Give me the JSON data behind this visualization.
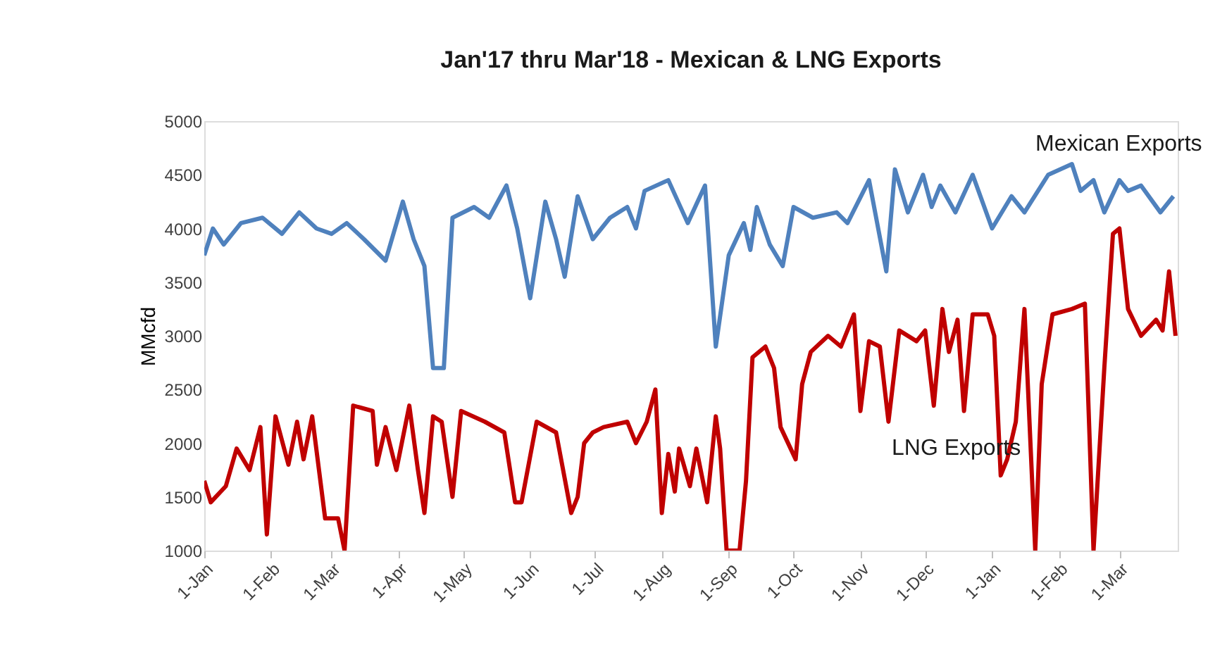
{
  "chart_data": {
    "type": "line",
    "title": "Jan'17 thru Mar'18 - Mexican & LNG Exports",
    "ylabel": "MMcfd",
    "ylim": [
      1000,
      5000
    ],
    "yticks": [
      1000,
      1500,
      2000,
      2500,
      3000,
      3500,
      4000,
      4500,
      5000
    ],
    "xlim": [
      "2017-01-01",
      "2018-03-28"
    ],
    "xticks": [
      {
        "value": "2017-01-01",
        "label": "1-Jan"
      },
      {
        "value": "2017-02-01",
        "label": "1-Feb"
      },
      {
        "value": "2017-03-01",
        "label": "1-Mar"
      },
      {
        "value": "2017-04-01",
        "label": "1-Apr"
      },
      {
        "value": "2017-05-01",
        "label": "1-May"
      },
      {
        "value": "2017-06-01",
        "label": "1-Jun"
      },
      {
        "value": "2017-07-01",
        "label": "1-Jul"
      },
      {
        "value": "2017-08-01",
        "label": "1-Aug"
      },
      {
        "value": "2017-09-01",
        "label": "1-Sep"
      },
      {
        "value": "2017-10-01",
        "label": "1-Oct"
      },
      {
        "value": "2017-11-01",
        "label": "1-Nov"
      },
      {
        "value": "2017-12-01",
        "label": "1-Dec"
      },
      {
        "value": "2018-01-01",
        "label": "1-Jan"
      },
      {
        "value": "2018-02-01",
        "label": "1-Feb"
      },
      {
        "value": "2018-03-01",
        "label": "1-Mar"
      }
    ],
    "grid": false,
    "legend": false,
    "marker": "none",
    "line_style": "solid",
    "series": [
      {
        "name": "Mexican Exports",
        "color": "#4f81bd",
        "x": [
          "2017-01-01",
          "2017-01-05",
          "2017-01-10",
          "2017-01-18",
          "2017-01-28",
          "2017-02-06",
          "2017-02-14",
          "2017-02-22",
          "2017-03-01",
          "2017-03-08",
          "2017-03-16",
          "2017-03-26",
          "2017-04-03",
          "2017-04-08",
          "2017-04-13",
          "2017-04-17",
          "2017-04-22",
          "2017-04-26",
          "2017-05-06",
          "2017-05-13",
          "2017-05-21",
          "2017-05-26",
          "2017-06-01",
          "2017-06-08",
          "2017-06-13",
          "2017-06-17",
          "2017-06-23",
          "2017-06-30",
          "2017-07-08",
          "2017-07-16",
          "2017-07-20",
          "2017-07-24",
          "2017-08-04",
          "2017-08-13",
          "2017-08-21",
          "2017-08-26",
          "2017-09-01",
          "2017-09-08",
          "2017-09-11",
          "2017-09-14",
          "2017-09-20",
          "2017-09-26",
          "2017-10-01",
          "2017-10-10",
          "2017-10-21",
          "2017-10-26",
          "2017-11-05",
          "2017-11-13",
          "2017-11-17",
          "2017-11-23",
          "2017-11-30",
          "2017-12-04",
          "2017-12-08",
          "2017-12-15",
          "2017-12-23",
          "2018-01-01",
          "2018-01-10",
          "2018-01-16",
          "2018-01-27",
          "2018-02-07",
          "2018-02-11",
          "2018-02-17",
          "2018-02-22",
          "2018-03-01",
          "2018-03-05",
          "2018-03-11",
          "2018-03-20",
          "2018-03-26"
        ],
        "values": [
          3750,
          4000,
          3850,
          4050,
          4100,
          3950,
          4150,
          4000,
          3950,
          4050,
          3900,
          3700,
          4250,
          3900,
          3650,
          2700,
          2700,
          4100,
          4200,
          4100,
          4400,
          4000,
          3350,
          4250,
          3900,
          3550,
          4300,
          3900,
          4100,
          4200,
          4000,
          4350,
          4450,
          4050,
          4400,
          2900,
          3750,
          4050,
          3800,
          4200,
          3850,
          3650,
          4200,
          4100,
          4150,
          4050,
          4450,
          3600,
          4550,
          4150,
          4500,
          4200,
          4400,
          4150,
          4500,
          4000,
          4300,
          4150,
          4500,
          4600,
          4350,
          4450,
          4150,
          4450,
          4350,
          4400,
          4150,
          4300
        ]
      },
      {
        "name": "LNG Exports",
        "color": "#c00000",
        "x": [
          "2017-01-01",
          "2017-01-04",
          "2017-01-11",
          "2017-01-16",
          "2017-01-22",
          "2017-01-27",
          "2017-01-30",
          "2017-02-03",
          "2017-02-09",
          "2017-02-13",
          "2017-02-16",
          "2017-02-20",
          "2017-02-26",
          "2017-03-04",
          "2017-03-07",
          "2017-03-11",
          "2017-03-20",
          "2017-03-22",
          "2017-03-26",
          "2017-03-31",
          "2017-04-06",
          "2017-04-10",
          "2017-04-13",
          "2017-04-17",
          "2017-04-21",
          "2017-04-26",
          "2017-04-30",
          "2017-05-11",
          "2017-05-20",
          "2017-05-25",
          "2017-05-28",
          "2017-06-04",
          "2017-06-13",
          "2017-06-20",
          "2017-06-23",
          "2017-06-26",
          "2017-06-30",
          "2017-07-05",
          "2017-07-16",
          "2017-07-20",
          "2017-07-25",
          "2017-07-29",
          "2017-08-01",
          "2017-08-04",
          "2017-08-07",
          "2017-08-09",
          "2017-08-14",
          "2017-08-17",
          "2017-08-22",
          "2017-08-26",
          "2017-08-28",
          "2017-08-31",
          "2017-09-06",
          "2017-09-09",
          "2017-09-12",
          "2017-09-18",
          "2017-09-22",
          "2017-09-25",
          "2017-10-02",
          "2017-10-05",
          "2017-10-09",
          "2017-10-17",
          "2017-10-23",
          "2017-10-29",
          "2017-11-01",
          "2017-11-05",
          "2017-11-10",
          "2017-11-14",
          "2017-11-19",
          "2017-11-27",
          "2017-12-01",
          "2017-12-05",
          "2017-12-09",
          "2017-12-12",
          "2017-12-16",
          "2017-12-19",
          "2017-12-23",
          "2017-12-30",
          "2018-01-02",
          "2018-01-05",
          "2018-01-08",
          "2018-01-12",
          "2018-01-16",
          "2018-01-21",
          "2018-01-24",
          "2018-01-29",
          "2018-02-07",
          "2018-02-13",
          "2018-02-17",
          "2018-02-22",
          "2018-02-26",
          "2018-03-01",
          "2018-03-05",
          "2018-03-11",
          "2018-03-18",
          "2018-03-21",
          "2018-03-24",
          "2018-03-27"
        ],
        "values": [
          1650,
          1450,
          1600,
          1950,
          1750,
          2150,
          1150,
          2250,
          1800,
          2200,
          1850,
          2250,
          1300,
          1300,
          1000,
          2350,
          2300,
          1800,
          2150,
          1750,
          2350,
          1750,
          1350,
          2250,
          2200,
          1500,
          2300,
          2200,
          2100,
          1450,
          1450,
          2200,
          2100,
          1350,
          1500,
          2000,
          2100,
          2150,
          2200,
          2000,
          2200,
          2500,
          1350,
          1900,
          1550,
          1950,
          1600,
          1950,
          1450,
          2250,
          1950,
          1000,
          1000,
          1650,
          2800,
          2900,
          2700,
          2150,
          1850,
          2550,
          2850,
          3000,
          2900,
          3200,
          2300,
          2950,
          2900,
          2200,
          3050,
          2950,
          3050,
          2350,
          3250,
          2850,
          3150,
          2300,
          3200,
          3200,
          3000,
          1700,
          1850,
          2200,
          3250,
          1000,
          2550,
          3200,
          3250,
          3300,
          1000,
          2700,
          3950,
          4000,
          3250,
          3000,
          3150,
          3050,
          3600,
          3000
        ]
      }
    ]
  }
}
